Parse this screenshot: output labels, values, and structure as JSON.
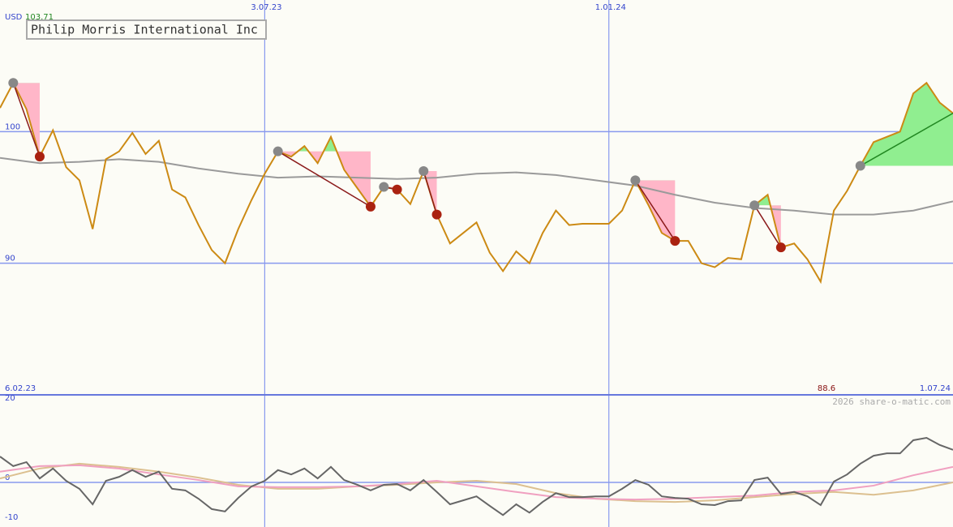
{
  "header": {
    "currency": "USD",
    "high": 103.71,
    "title": "Philip Morris International Inc",
    "credit": "2026 share-o-matic.com"
  },
  "chart_data": [
    {
      "type": "line",
      "xlim": [
        0,
        72
      ],
      "ylim": [
        80,
        110
      ],
      "xticks": [
        {
          "value": 0,
          "label": "6.02.23"
        },
        {
          "value": 20,
          "label": "3.07.23"
        },
        {
          "value": 46,
          "label": "1.01.24"
        },
        {
          "value": 72,
          "label": "1.07.24"
        }
      ],
      "yticks": [
        90,
        100
      ],
      "grid": true,
      "low": 88.6,
      "series": [
        {
          "color": "#cc8a14",
          "x": [
            0,
            1,
            2,
            3,
            4,
            5,
            6,
            7,
            8,
            9,
            10,
            11,
            12,
            13,
            14,
            15,
            16,
            17,
            18,
            19,
            20,
            21,
            22,
            23,
            24,
            25,
            26,
            27,
            28,
            29,
            30,
            31,
            32,
            33,
            34,
            35,
            36,
            37,
            38,
            39,
            40,
            41,
            42,
            43,
            44,
            45,
            46,
            47,
            48,
            49,
            50,
            51,
            52,
            53,
            54,
            55,
            56,
            57,
            58,
            59,
            60,
            61,
            62,
            63,
            64,
            65,
            66,
            67,
            68,
            69,
            70,
            71,
            72
          ],
          "values": [
            101.8,
            103.7,
            101.7,
            98.1,
            100.1,
            97.3,
            96.3,
            92.6,
            97.9,
            98.5,
            99.9,
            98.3,
            99.3,
            95.6,
            95.0,
            92.9,
            91.0,
            90.0,
            92.6,
            94.8,
            96.8,
            98.5,
            98.1,
            98.9,
            97.6,
            99.6,
            97.1,
            95.7,
            94.3,
            95.8,
            95.6,
            94.5,
            97.0,
            93.7,
            91.5,
            92.3,
            93.1,
            90.8,
            89.4,
            90.9,
            90.0,
            92.3,
            94.0,
            92.9,
            93.0,
            93.0,
            93.0,
            94.0,
            96.3,
            94.4,
            92.3,
            91.7,
            91.7,
            90.0,
            89.7,
            90.4,
            90.3,
            94.4,
            95.2,
            91.2,
            91.5,
            90.3,
            88.6,
            94.0,
            95.5,
            97.4,
            99.2,
            99.6,
            100.0,
            102.9,
            103.7,
            102.2,
            101.4
          ]
        },
        {
          "color": "#9a9a9a",
          "x": [
            0,
            3,
            6,
            9,
            12,
            15,
            18,
            21,
            24,
            27,
            30,
            33,
            36,
            39,
            42,
            45,
            48,
            51,
            54,
            57,
            60,
            63,
            66,
            69,
            72
          ],
          "values": [
            98.0,
            97.6,
            97.7,
            97.9,
            97.7,
            97.2,
            96.8,
            96.5,
            96.6,
            96.5,
            96.4,
            96.5,
            96.8,
            96.9,
            96.7,
            96.3,
            95.9,
            95.2,
            94.6,
            94.2,
            94.0,
            93.7,
            93.7,
            94.0,
            94.7
          ]
        }
      ],
      "signals": [
        {
          "entry": 1,
          "exit": 3
        },
        {
          "entry": 21,
          "exit": 28
        },
        {
          "entry": 29,
          "exit": 30
        },
        {
          "entry": 32,
          "exit": 33
        },
        {
          "entry": 48,
          "exit": 51
        },
        {
          "entry": 57,
          "exit": 59
        },
        {
          "entry": 65
        }
      ]
    },
    {
      "type": "line",
      "xlim": [
        0,
        72
      ],
      "ylim": [
        -11.2,
        22
      ],
      "yticks": [
        20,
        0,
        -10
      ],
      "series": [
        {
          "color": "#666666",
          "x": [
            0,
            1,
            2,
            3,
            4,
            5,
            6,
            7,
            8,
            9,
            10,
            11,
            12,
            13,
            14,
            15,
            16,
            17,
            18,
            19,
            20,
            21,
            22,
            23,
            24,
            25,
            26,
            27,
            28,
            29,
            30,
            31,
            32,
            33,
            34,
            35,
            36,
            37,
            38,
            39,
            40,
            41,
            42,
            43,
            44,
            45,
            46,
            47,
            48,
            49,
            50,
            51,
            52,
            53,
            54,
            55,
            56,
            57,
            58,
            59,
            60,
            61,
            62,
            63,
            64,
            65,
            66,
            67,
            68,
            69,
            70,
            71,
            72
          ],
          "values": [
            6.5,
            4.1,
            5.1,
            1.0,
            3.5,
            0.4,
            -1.6,
            -5.5,
            0.4,
            1.4,
            3.1,
            1.4,
            2.7,
            -1.6,
            -2.0,
            -4.1,
            -6.7,
            -7.3,
            -3.9,
            -1.0,
            0.4,
            3.1,
            2.0,
            3.5,
            1.0,
            3.9,
            0.6,
            -0.6,
            -2.0,
            -0.6,
            -0.4,
            -2.0,
            0.6,
            -2.4,
            -5.5,
            -4.5,
            -3.5,
            -5.9,
            -8.2,
            -5.5,
            -7.6,
            -4.9,
            -2.7,
            -3.7,
            -3.7,
            -3.5,
            -3.5,
            -1.6,
            0.6,
            -0.6,
            -3.5,
            -3.9,
            -4.1,
            -5.5,
            -5.7,
            -4.7,
            -4.5,
            0.6,
            1.2,
            -2.9,
            -2.4,
            -3.5,
            -5.7,
            0.2,
            2.0,
            4.7,
            6.7,
            7.3,
            7.3,
            10.6,
            11.2,
            9.4,
            8.2
          ]
        },
        {
          "color": "#f0a0c0",
          "x": [
            0,
            3,
            6,
            9,
            12,
            15,
            18,
            21,
            24,
            27,
            30,
            33,
            36,
            39,
            42,
            45,
            48,
            51,
            54,
            57,
            60,
            63,
            66,
            69,
            72
          ],
          "values": [
            2.7,
            4.1,
            4.3,
            3.5,
            2.0,
            0.6,
            -1.0,
            -1.2,
            -1.2,
            -1.0,
            -0.4,
            0.4,
            -1.0,
            -2.4,
            -3.7,
            -4.1,
            -4.3,
            -4.1,
            -3.7,
            -3.3,
            -2.4,
            -2.0,
            -0.8,
            1.8,
            3.9
          ]
        },
        {
          "color": "#dcc090",
          "x": [
            0,
            3,
            6,
            9,
            12,
            15,
            18,
            21,
            24,
            27,
            30,
            33,
            36,
            39,
            42,
            45,
            48,
            51,
            54,
            57,
            60,
            63,
            66,
            69,
            72
          ],
          "values": [
            1.0,
            3.5,
            4.7,
            3.9,
            2.7,
            1.2,
            -0.6,
            -1.6,
            -1.6,
            -1.0,
            -0.6,
            0,
            0.4,
            -0.4,
            -2.7,
            -4.1,
            -4.7,
            -4.9,
            -4.5,
            -3.7,
            -2.9,
            -2.4,
            -3.1,
            -2.0,
            0
          ]
        }
      ]
    }
  ]
}
